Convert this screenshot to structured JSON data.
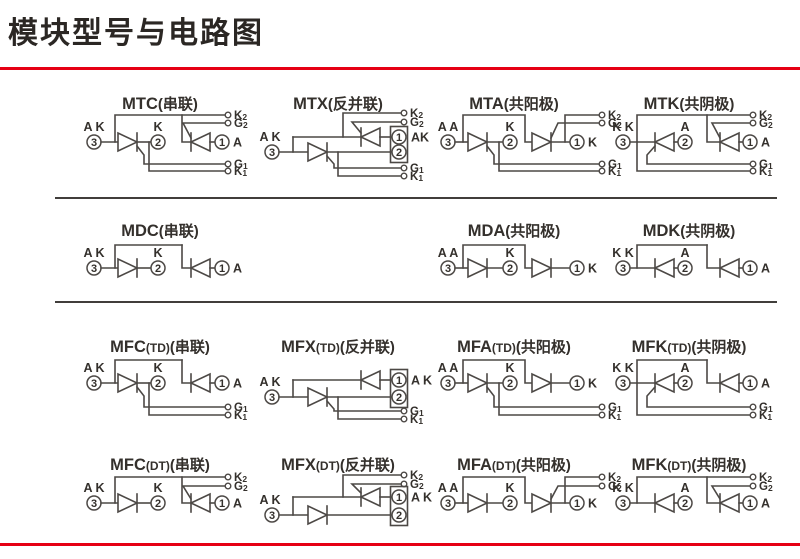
{
  "page": {
    "title": "模块型号与电路图"
  },
  "colors": {
    "accent": "#e60014",
    "wire": "#4c4845",
    "text": "#34302c",
    "text_strong": "#2b2724",
    "separator": "#413e3b"
  },
  "diagrams": [
    {
      "name": "MTC",
      "sub": "",
      "variant": "串联",
      "type": "series",
      "row": 1,
      "col": 1,
      "dev1": "thyristor",
      "dev2": "thyristor",
      "labels": {
        "t3": "A K",
        "t2": "K",
        "t1": "A"
      },
      "pins": [
        "3",
        "2",
        "1"
      ],
      "aux_top": [
        "K2",
        "G2"
      ],
      "aux_bottom": [
        "G1",
        "K1"
      ]
    },
    {
      "name": "MTX",
      "sub": "",
      "variant": "反并联",
      "type": "antiparallel",
      "row": 1,
      "col": 2,
      "dev1": "thyristor",
      "dev2": "thyristor",
      "labels": {
        "t3": "A K",
        "box": "AK"
      },
      "pins": [
        "3",
        "2",
        "1"
      ],
      "aux_top": [
        "K2",
        "G2"
      ],
      "aux_bottom": [
        "G1",
        "K1"
      ]
    },
    {
      "name": "MTA",
      "sub": "",
      "variant": "共阳极",
      "type": "common_anode",
      "row": 1,
      "col": 3,
      "dev1": "thyristor",
      "dev2": "thyristor",
      "labels": {
        "t3": "A A",
        "t2": "K",
        "t1": "K"
      },
      "pins": [
        "3",
        "2",
        "1"
      ],
      "aux_top": [
        "K2",
        "G2"
      ],
      "aux_bottom": [
        "G1",
        "K1"
      ]
    },
    {
      "name": "MTK",
      "sub": "",
      "variant": "共阴极",
      "type": "common_cathode",
      "row": 1,
      "col": 4,
      "dev1": "thyristor",
      "dev2": "thyristor",
      "labels": {
        "t3": "K K",
        "t2": "A",
        "t1": "A"
      },
      "pins": [
        "3",
        "2",
        "1"
      ],
      "aux_top": [
        "K2",
        "G2"
      ],
      "aux_bottom": [
        "G1",
        "K1"
      ]
    },
    {
      "name": "MDC",
      "sub": "",
      "variant": "串联",
      "type": "series",
      "row": 2,
      "col": 1,
      "dev1": "diode",
      "dev2": "diode",
      "labels": {
        "t3": "A K",
        "t2": "K",
        "t1": "A"
      },
      "pins": [
        "3",
        "2",
        "1"
      ],
      "aux_top": [],
      "aux_bottom": []
    },
    {
      "name": "MDA",
      "sub": "",
      "variant": "共阳极",
      "type": "common_anode",
      "row": 2,
      "col": 3,
      "dev1": "diode",
      "dev2": "diode",
      "labels": {
        "t3": "A A",
        "t2": "K",
        "t1": "K"
      },
      "pins": [
        "3",
        "2",
        "1"
      ],
      "aux_top": [],
      "aux_bottom": []
    },
    {
      "name": "MDK",
      "sub": "",
      "variant": "共阴极",
      "type": "common_cathode",
      "row": 2,
      "col": 4,
      "dev1": "diode",
      "dev2": "diode",
      "labels": {
        "t3": "K K",
        "t2": "A",
        "t1": "A"
      },
      "pins": [
        "3",
        "2",
        "1"
      ],
      "aux_top": [],
      "aux_bottom": []
    },
    {
      "name": "MFC",
      "sub": "TD",
      "variant": "串联",
      "type": "series",
      "row": 3,
      "col": 1,
      "dev1": "thyristor",
      "dev2": "diode",
      "labels": {
        "t3": "A K",
        "t2": "K",
        "t1": "A"
      },
      "pins": [
        "3",
        "2",
        "1"
      ],
      "aux_top": [],
      "aux_bottom": [
        "G1",
        "K1"
      ]
    },
    {
      "name": "MFX",
      "sub": "TD",
      "variant": "反并联",
      "type": "antiparallel",
      "row": 3,
      "col": 2,
      "dev1": "thyristor",
      "dev2": "diode",
      "labels": {
        "t3": "A K",
        "box": "A K"
      },
      "pins": [
        "3",
        "2",
        "1"
      ],
      "aux_top": [],
      "aux_bottom": [
        "G1",
        "K1"
      ]
    },
    {
      "name": "MFA",
      "sub": "TD",
      "variant": "共阳极",
      "type": "common_anode",
      "row": 3,
      "col": 3,
      "dev1": "thyristor",
      "dev2": "diode",
      "labels": {
        "t3": "A A",
        "t2": "K",
        "t1": "K"
      },
      "pins": [
        "3",
        "2",
        "1"
      ],
      "aux_top": [],
      "aux_bottom": [
        "G1",
        "K1"
      ]
    },
    {
      "name": "MFK",
      "sub": "TD",
      "variant": "共阴极",
      "type": "common_cathode",
      "row": 3,
      "col": 4,
      "dev1": "thyristor",
      "dev2": "diode",
      "labels": {
        "t3": "K K",
        "t2": "A",
        "t1": "A"
      },
      "pins": [
        "3",
        "2",
        "1"
      ],
      "aux_top": [],
      "aux_bottom": [
        "G1",
        "K1"
      ]
    },
    {
      "name": "MFC",
      "sub": "DT",
      "variant": "串联",
      "type": "series",
      "row": 4,
      "col": 1,
      "dev1": "diode",
      "dev2": "thyristor",
      "labels": {
        "t3": "A K",
        "t2": "K",
        "t1": "A"
      },
      "pins": [
        "3",
        "2",
        "1"
      ],
      "aux_top": [
        "K2",
        "G2"
      ],
      "aux_bottom": []
    },
    {
      "name": "MFX",
      "sub": "DT",
      "variant": "反并联",
      "type": "antiparallel",
      "row": 4,
      "col": 2,
      "dev1": "diode",
      "dev2": "thyristor",
      "labels": {
        "t3": "A K",
        "box": "A K"
      },
      "pins": [
        "3",
        "2",
        "1"
      ],
      "aux_top": [
        "K2",
        "G2"
      ],
      "aux_bottom": []
    },
    {
      "name": "MFA",
      "sub": "DT",
      "variant": "共阳极",
      "type": "common_anode",
      "row": 4,
      "col": 3,
      "dev1": "diode",
      "dev2": "thyristor",
      "labels": {
        "t3": "A A",
        "t2": "K",
        "t1": "K"
      },
      "pins": [
        "3",
        "2",
        "1"
      ],
      "aux_top": [
        "K2",
        "G2"
      ],
      "aux_bottom": []
    },
    {
      "name": "MFK",
      "sub": "DT",
      "variant": "共阴极",
      "type": "common_cathode",
      "row": 4,
      "col": 4,
      "dev1": "diode",
      "dev2": "thyristor",
      "labels": {
        "t3": "K K",
        "t2": "A",
        "t1": "A"
      },
      "pins": [
        "3",
        "2",
        "1"
      ],
      "aux_top": [
        "K2",
        "G2"
      ],
      "aux_bottom": []
    }
  ]
}
